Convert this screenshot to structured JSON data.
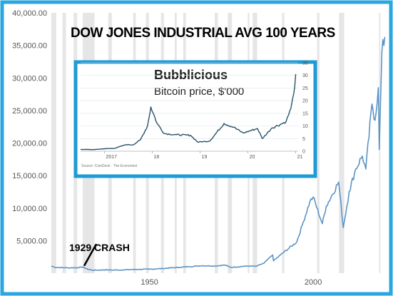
{
  "colors": {
    "frame": "#2aa7df",
    "line_main": "#5b94c5",
    "line_inset": "#27536a",
    "recession": "#e6e6e6"
  },
  "chart_data": [
    {
      "type": "line",
      "title": "DOW JONES INDUSTRIAL AVG 100 YEARS",
      "xlabel": "",
      "ylabel": "",
      "xlim": [
        1920,
        2022
      ],
      "ylim": [
        0,
        40000
      ],
      "x_ticks": [
        {
          "value": 1950,
          "label": "1950"
        },
        {
          "value": 2000,
          "label": "2000"
        }
      ],
      "y_ticks": [
        {
          "value": 5000,
          "label": "5,000.00"
        },
        {
          "value": 10000,
          "label": "10,000.00"
        },
        {
          "value": 15000,
          "label": "15,000.00"
        },
        {
          "value": 20000,
          "label": "20,000.00"
        },
        {
          "value": 25000,
          "label": "25,000.00"
        },
        {
          "value": 30000,
          "label": "30,000.00"
        },
        {
          "value": 35000,
          "label": "35,000.00"
        },
        {
          "value": 40000,
          "label": "40,000.00"
        }
      ],
      "recession_bands": [
        [
          1920,
          1921.5
        ],
        [
          1923.4,
          1924.5
        ],
        [
          1926.8,
          1927.9
        ],
        [
          1929.6,
          1933.2
        ],
        [
          1937.4,
          1938.5
        ],
        [
          1945,
          1945.8
        ],
        [
          1948.9,
          1949.8
        ],
        [
          1953.5,
          1954.4
        ],
        [
          1957.7,
          1958.3
        ],
        [
          1960.3,
          1961.1
        ],
        [
          1969.9,
          1970.9
        ],
        [
          1973.9,
          1975.2
        ],
        [
          1980,
          1980.5
        ],
        [
          1981.5,
          1982.9
        ],
        [
          1990.5,
          1991.2
        ],
        [
          2001.2,
          2001.9
        ],
        [
          2007.9,
          2009.5
        ],
        [
          2020.1,
          2020.4
        ]
      ],
      "series": [
        {
          "x": [
            1920,
            1921,
            1925,
            1928,
            1929.7,
            1930.5,
            1932.5,
            1937,
            1938,
            1942,
            1946,
            1950,
            1954,
            1959,
            1962,
            1966,
            1970,
            1973,
            1974.9,
            1980,
            1982.6,
            1985,
            1987.6,
            1987.9,
            1990,
            1995,
            1997,
            1999,
            2000,
            2002.8,
            2004,
            2007.8,
            2009.2,
            2011,
            2013,
            2015,
            2016.1,
            2018,
            2018.9,
            2019.9,
            2020.2,
            2021,
            2021.9
          ],
          "values": [
            1100,
            900,
            820,
            840,
            960,
            700,
            450,
            520,
            480,
            500,
            580,
            610,
            720,
            900,
            1000,
            1150,
            1100,
            1250,
            900,
            1100,
            1050,
            1550,
            2800,
            1900,
            2800,
            4800,
            7900,
            11000,
            11700,
            7600,
            10300,
            14000,
            7000,
            12500,
            16000,
            18000,
            16000,
            26000,
            23500,
            28500,
            19000,
            34000,
            36300
          ]
        }
      ],
      "annotations": [
        {
          "text": "1929 CRASH",
          "x": 1929.7,
          "y": 900
        }
      ]
    },
    {
      "type": "line",
      "title": "Bubblicious",
      "subtitle": "Bitcoin price, $'000",
      "source": "Source: CoinDesk · The Economist",
      "xlim": [
        2016.5,
        2021.05
      ],
      "ylim": [
        0,
        35
      ],
      "x_ticks": [
        {
          "value": 2017,
          "label": "2017"
        },
        {
          "value": 2018,
          "label": "18"
        },
        {
          "value": 2019,
          "label": "19"
        },
        {
          "value": 2020,
          "label": "20"
        },
        {
          "value": 2021,
          "label": "21"
        }
      ],
      "y_ticks": [
        {
          "value": 0,
          "label": "0"
        },
        {
          "value": 5,
          "label": "5"
        },
        {
          "value": 10,
          "label": "10"
        },
        {
          "value": 15,
          "label": "15"
        },
        {
          "value": 20,
          "label": "20"
        },
        {
          "value": 25,
          "label": "25"
        },
        {
          "value": 30,
          "label": "30"
        },
        {
          "value": 35,
          "label": "35"
        }
      ],
      "series": [
        {
          "x": [
            2016.5,
            2016.8,
            2017.0,
            2017.2,
            2017.45,
            2017.6,
            2017.75,
            2017.9,
            2017.97,
            2018.1,
            2018.25,
            2018.5,
            2018.8,
            2018.95,
            2019.2,
            2019.5,
            2019.7,
            2019.9,
            2020.2,
            2020.3,
            2020.5,
            2020.7,
            2020.8,
            2020.9,
            2020.96,
            2021.0
          ],
          "values": [
            0.7,
            0.65,
            1.0,
            1.1,
            2.6,
            2.5,
            4.5,
            10.0,
            17.5,
            11.0,
            7.0,
            6.5,
            6.3,
            3.6,
            4.0,
            11.0,
            9.5,
            7.2,
            9.0,
            5.0,
            9.2,
            10.8,
            11.8,
            17.0,
            23.0,
            30.5
          ]
        }
      ]
    }
  ]
}
